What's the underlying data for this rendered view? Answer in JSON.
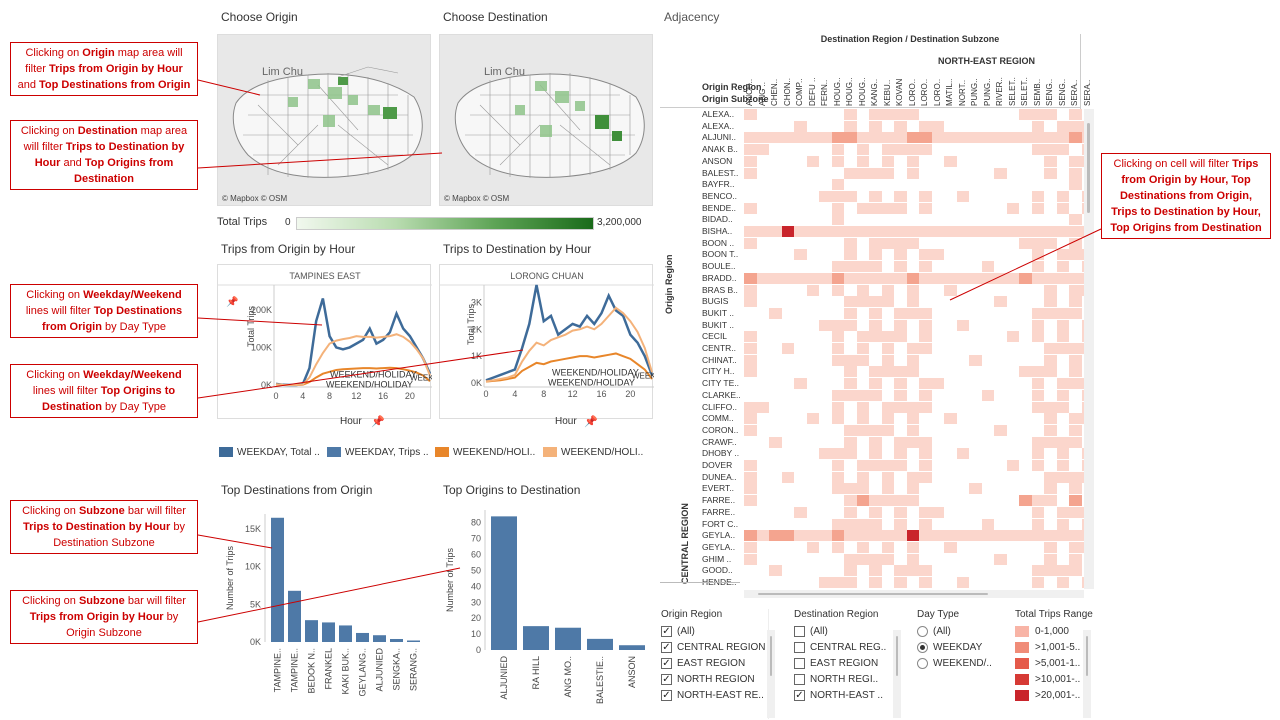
{
  "titles": {
    "choose_origin": "Choose Origin",
    "choose_destination": "Choose Destination",
    "adjacency": "Adjacency",
    "total_trips": "Total Trips",
    "trips_from_origin": "Trips from Origin by Hour",
    "trips_to_destination": "Trips to Destination by Hour",
    "top_destinations": "Top Destinations from Origin",
    "top_origins": "Top Origins to Destination"
  },
  "map": {
    "credit": "© Mapbox © OSM",
    "label_origin": "Lim Chu",
    "label_dest": "Lim Chu",
    "legend_min": "0",
    "legend_max": "3,200,000",
    "color_low": "#eaf4e6",
    "color_high": "#1a6b1a"
  },
  "callouts": {
    "c1": {
      "pre": "Clicking on ",
      "b1": "Origin",
      "mid1": " map area will filter ",
      "b2": "Trips from Origin by Hour",
      "mid2": " and ",
      "b3": "Top Destinations from Origin",
      "post": ""
    },
    "c2": {
      "pre": "Clicking on ",
      "b1": "Destination",
      "mid1": " map area will filter ",
      "b2": "Trips to Destination by Hour",
      "mid2": " and ",
      "b3": "Top Origins from Destination",
      "post": ""
    },
    "c3": {
      "pre": "Clicking on ",
      "b1": "Weekday/Weekend",
      "mid1": " lines will filter ",
      "b2": "Top Destinations from Origin",
      "post": " by Day Type"
    },
    "c4": {
      "pre": "Clicking on ",
      "b1": "Weekday/Weekend",
      "mid1": " lines will filter ",
      "b2": "Top Origins to Destination",
      "post": " by Day Type"
    },
    "c5": {
      "pre": "Clicking on ",
      "b1": "Subzone",
      "mid1": " bar will filter ",
      "b2": "Trips to Destination by Hour",
      "post": " by Destination Subzone"
    },
    "c6": {
      "pre": "Clicking on ",
      "b1": "Subzone",
      "mid1": " bar will filter ",
      "b2": "Trips from Origin by Hour",
      "post": " by Origin Subzone"
    },
    "c7": {
      "pre": "Clicking on cell will filter ",
      "b1": "Trips from Origin by Hour, Top Destinations from Origin, Trips to Destination by Hour, Top Origins from Destination"
    }
  },
  "line_charts": {
    "origin": {
      "header": "TAMPINES EAST",
      "yticks": [
        "200K",
        "100K",
        "0K"
      ],
      "ylabel": "Total Trips",
      "xticks": [
        "0",
        "4",
        "8",
        "12",
        "16",
        "20"
      ],
      "xlabel": "Hour",
      "label_a": "WEEKEND/HOLIDAY",
      "label_b": "WEEKEND/HOLIDAY",
      "label_c": "WEEKDAY"
    },
    "destination": {
      "header": "LORONG CHUAN",
      "yticks": [
        "3K",
        "2K",
        "1K",
        "0K"
      ],
      "ylabel": "Total Trips",
      "xticks": [
        "0",
        "4",
        "8",
        "12",
        "16",
        "20"
      ],
      "xlabel": "Hour",
      "label_a": "WEEKEND/HOLIDAY",
      "label_b": "WEEKEND/HOLIDAY",
      "label_c": "WEEKDAY"
    },
    "legend": [
      {
        "label": "WEEKDAY, Total ..",
        "color": "#3e6b99"
      },
      {
        "label": "WEEKDAY, Trips ..",
        "color": "#4e79a7"
      },
      {
        "label": "WEEKEND/HOLI..",
        "color": "#e8862a"
      },
      {
        "label": "WEEKEND/HOLI..",
        "color": "#f4b27a"
      }
    ]
  },
  "chart_data": [
    {
      "type": "line",
      "title": "Trips from Origin by Hour",
      "subtitle": "TAMPINES EAST",
      "xlabel": "Hour",
      "ylabel": "Total Trips",
      "ylim": [
        0,
        250000
      ],
      "x": [
        0,
        1,
        2,
        3,
        4,
        5,
        6,
        7,
        8,
        9,
        10,
        11,
        12,
        13,
        14,
        15,
        16,
        17,
        18,
        19,
        20,
        21,
        22,
        23
      ],
      "series": [
        {
          "name": "WEEKDAY, Total ..",
          "color": "#3e6b99",
          "values": [
            3000,
            500,
            0,
            0,
            2000,
            45000,
            170000,
            230000,
            130000,
            100000,
            95000,
            100000,
            110000,
            120000,
            150000,
            110000,
            120000,
            140000,
            190000,
            150000,
            130000,
            100000,
            70000,
            30000
          ]
        },
        {
          "name": "WEEKEND/HOLI..",
          "color": "#e8862a",
          "values": [
            1000,
            200,
            0,
            0,
            500,
            8000,
            20000,
            30000,
            35000,
            40000,
            42000,
            43000,
            44000,
            45000,
            45000,
            44000,
            45000,
            46000,
            45000,
            42000,
            38000,
            33000,
            25000,
            10000
          ]
        },
        {
          "name": "WEEKEND/HOLI..",
          "color": "#f4b27a",
          "values": [
            2000,
            300,
            0,
            0,
            1000,
            20000,
            55000,
            85000,
            110000,
            118000,
            122000,
            125000,
            130000,
            128000,
            128000,
            126000,
            128000,
            130000,
            135000,
            128000,
            115000,
            95000,
            70000,
            25000
          ]
        }
      ]
    },
    {
      "type": "line",
      "title": "Trips to Destination by Hour",
      "subtitle": "LORONG CHUAN",
      "xlabel": "Hour",
      "ylabel": "Total Trips",
      "ylim": [
        0,
        3500
      ],
      "x": [
        0,
        1,
        2,
        3,
        4,
        5,
        6,
        7,
        8,
        9,
        10,
        11,
        12,
        13,
        14,
        15,
        16,
        17,
        18,
        19,
        20,
        21,
        22,
        23
      ],
      "series": [
        {
          "name": "WEEKDAY, Total ..",
          "color": "#3e6b99",
          "values": [
            100,
            200,
            300,
            400,
            500,
            1300,
            2200,
            3650,
            2300,
            2500,
            1800,
            2000,
            2200,
            2100,
            2500,
            2200,
            2600,
            3250,
            2700,
            2500,
            1800,
            1500,
            1000,
            300
          ]
        },
        {
          "name": "WEEKEND/HOLI..",
          "color": "#e8862a",
          "values": [
            50,
            80,
            100,
            150,
            200,
            450,
            600,
            750,
            700,
            800,
            850,
            900,
            950,
            1000,
            1000,
            950,
            1000,
            1050,
            1100,
            1000,
            900,
            700,
            500,
            150
          ]
        },
        {
          "name": "WEEKEND/HOLI..",
          "color": "#f4b27a",
          "values": [
            60,
            100,
            150,
            200,
            300,
            800,
            1200,
            1500,
            1400,
            1600,
            1700,
            1800,
            1950,
            2000,
            2100,
            2000,
            2200,
            2500,
            2800,
            2600,
            2300,
            1900,
            1300,
            400
          ]
        }
      ]
    },
    {
      "type": "bar",
      "title": "Top Destinations from Origin",
      "ylabel": "Number of Trips",
      "ylim": [
        0,
        17000
      ],
      "yticks": [
        "15K",
        "10K",
        "5K",
        "0K"
      ],
      "categories": [
        "TAMPINE..",
        "TAMPINE..",
        "BEDOK N..",
        "FRANKEL",
        "KAKI BUK..",
        "GEYLANG..",
        "ALJUNIED",
        "SENGKA..",
        "SERANG.."
      ],
      "values": [
        16500,
        6800,
        2900,
        2600,
        2200,
        1200,
        900,
        400,
        200
      ]
    },
    {
      "type": "bar",
      "title": "Top Origins to Destination",
      "ylabel": "Number of Trips",
      "ylim": [
        0,
        88
      ],
      "yticks": [
        "80",
        "70",
        "60",
        "50",
        "40",
        "30",
        "20",
        "10",
        "0"
      ],
      "categories": [
        "ALJUNIED",
        "RA HILL",
        "ANG MO..",
        "BALESTIE..",
        "ANSON"
      ],
      "values": [
        84,
        15,
        14,
        7,
        3
      ]
    }
  ],
  "adjacency": {
    "header": "Destination Region  /  Destination Subzone",
    "region_label": "NORTH-EAST REGION",
    "origin_region_label": "Origin Region",
    "origin_subzone_label": "Origin Subzone",
    "row_region": "Origin Region",
    "row_region2": "CENTRAL REGION",
    "columns": [
      "ANCH..",
      "ANG ..",
      "CHEN..",
      "CHON..",
      "COMP..",
      "DEFU ..",
      "FERN..",
      "HOUG..",
      "HOUG..",
      "HOUG..",
      "KANG..",
      "KEBU..",
      "KOVAN",
      "LORO..",
      "LORO..",
      "LORO..",
      "MATIL..",
      "NORT..",
      "PUNG..",
      "PUNG..",
      "RIVER..",
      "SELET..",
      "SELET..",
      "SEMB..",
      "SENG..",
      "SENG..",
      "SERA..",
      "SERA.."
    ],
    "rows": [
      "ALEXA..",
      "ALEXA..",
      "ALJUNI..",
      "ANAK B..",
      "ANSON",
      "BALEST..",
      "BAYFR..",
      "BENCO..",
      "BENDE..",
      "BIDAD..",
      "BISHA..",
      "BOON ..",
      "BOON T..",
      "BOULE..",
      "BRADD..",
      "BRAS B..",
      "BUGIS",
      "BUKIT ..",
      "BUKIT ..",
      "CECIL",
      "CENTR..",
      "CHINAT..",
      "CITY H..",
      "CITY TE..",
      "CLARKE..",
      "CLIFFO..",
      "COMM..",
      "CORON..",
      "CRAWF..",
      "DHOBY ..",
      "DOVER",
      "DUNEA..",
      "EVERT..",
      "FARRE..",
      "FARRE..",
      "FORT C..",
      "GEYLA..",
      "GEYLA..",
      "GHIM ..",
      "GOOD..",
      "HENDE.."
    ],
    "colors": [
      "#fbd6cc",
      "#f4a48f",
      "#e55a4a",
      "#c9242b",
      "#8f0b1c"
    ]
  },
  "filters": {
    "origin_region": {
      "title": "Origin Region",
      "items": [
        {
          "label": "(All)",
          "checked": true
        },
        {
          "label": "CENTRAL REGION",
          "checked": true
        },
        {
          "label": "EAST REGION",
          "checked": true
        },
        {
          "label": "NORTH REGION",
          "checked": true
        },
        {
          "label": "NORTH-EAST RE..",
          "checked": true
        }
      ]
    },
    "destination_region": {
      "title": "Destination Region",
      "items": [
        {
          "label": "(All)",
          "checked": false
        },
        {
          "label": "CENTRAL REG..",
          "checked": false
        },
        {
          "label": "EAST REGION",
          "checked": false
        },
        {
          "label": "NORTH REGI..",
          "checked": false
        },
        {
          "label": "NORTH-EAST ..",
          "checked": true
        }
      ]
    },
    "day_type": {
      "title": "Day Type",
      "items": [
        {
          "label": "(All)",
          "on": false
        },
        {
          "label": "WEEKDAY",
          "on": true
        },
        {
          "label": "WEEKEND/..",
          "on": false
        }
      ]
    },
    "trips_range": {
      "title": "Total Trips Range",
      "items": [
        {
          "label": "0-1,000",
          "color": "#f8b4a6"
        },
        {
          "label": ">1,001-5..",
          "color": "#f08c78"
        },
        {
          "label": ">5,001-1..",
          "color": "#e55a4a"
        },
        {
          "label": ">10,001-..",
          "color": "#d63a35"
        },
        {
          "label": ">20,001-..",
          "color": "#c9242b"
        }
      ]
    }
  }
}
